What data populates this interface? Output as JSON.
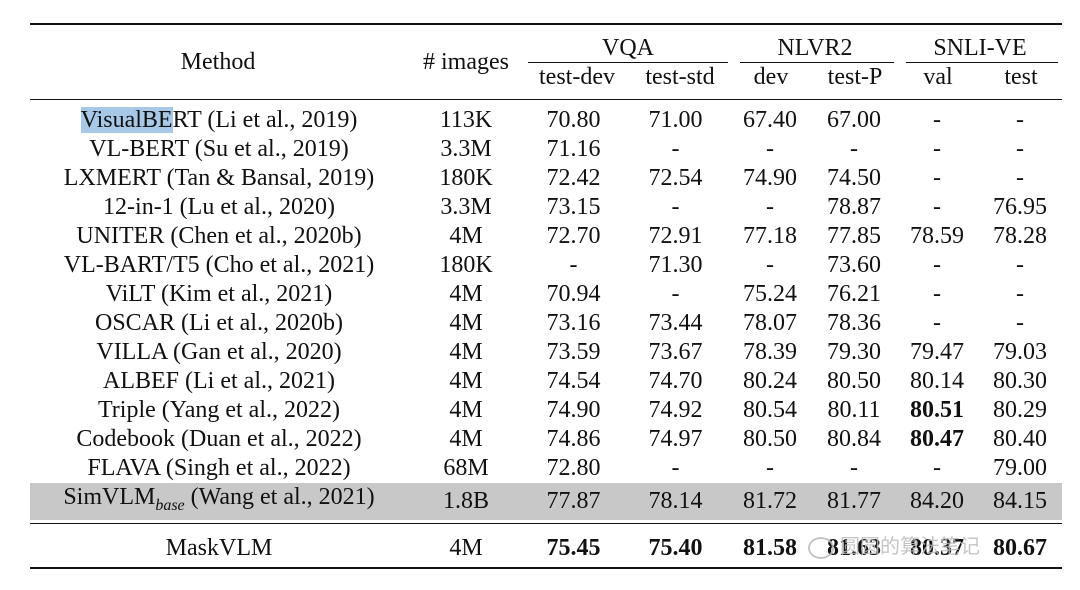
{
  "header": {
    "method": "Method",
    "images": "# images",
    "groups": [
      {
        "name": "VQA",
        "subs": [
          "test-dev",
          "test-std"
        ]
      },
      {
        "name": "NLVR2",
        "subs": [
          "dev",
          "test-P"
        ]
      },
      {
        "name": "SNLI-VE",
        "subs": [
          "val",
          "test"
        ]
      }
    ]
  },
  "rows": [
    {
      "method_sel": "VisualBE",
      "method_rest": "RT (Li et al., 2019)",
      "images": "113K",
      "vals": [
        "70.80",
        "71.00",
        "67.40",
        "67.00",
        "-",
        "-"
      ]
    },
    {
      "method": "VL-BERT (Su et al., 2019)",
      "images": "3.3M",
      "vals": [
        "71.16",
        "-",
        "-",
        "-",
        "-",
        "-"
      ]
    },
    {
      "method": "LXMERT (Tan & Bansal, 2019)",
      "images": "180K",
      "vals": [
        "72.42",
        "72.54",
        "74.90",
        "74.50",
        "-",
        "-"
      ]
    },
    {
      "method": "12-in-1 (Lu et al., 2020)",
      "images": "3.3M",
      "vals": [
        "73.15",
        "-",
        "-",
        "78.87",
        "-",
        "76.95"
      ]
    },
    {
      "method": "UNITER (Chen et al., 2020b)",
      "images": "4M",
      "vals": [
        "72.70",
        "72.91",
        "77.18",
        "77.85",
        "78.59",
        "78.28"
      ]
    },
    {
      "method": "VL-BART/T5 (Cho et al., 2021)",
      "images": "180K",
      "vals": [
        "-",
        "71.30",
        "-",
        "73.60",
        "-",
        "-"
      ]
    },
    {
      "method": "ViLT (Kim et al., 2021)",
      "images": "4M",
      "vals": [
        "70.94",
        "-",
        "75.24",
        "76.21",
        "-",
        "-"
      ]
    },
    {
      "method": "OSCAR (Li et al., 2020b)",
      "images": "4M",
      "vals": [
        "73.16",
        "73.44",
        "78.07",
        "78.36",
        "-",
        "-"
      ]
    },
    {
      "method": "VILLA (Gan et al., 2020)",
      "images": "4M",
      "vals": [
        "73.59",
        "73.67",
        "78.39",
        "79.30",
        "79.47",
        "79.03"
      ]
    },
    {
      "method": "ALBEF (Li et al., 2021)",
      "images": "4M",
      "vals": [
        "74.54",
        "74.70",
        "80.24",
        "80.50",
        "80.14",
        "80.30"
      ]
    },
    {
      "method": "Triple (Yang et al., 2022)",
      "images": "4M",
      "vals": [
        "74.90",
        "74.92",
        "80.54",
        "80.11",
        "80.51",
        "80.29"
      ]
    },
    {
      "method": "Codebook (Duan et al., 2022)",
      "images": "4M",
      "vals": [
        "74.86",
        "74.97",
        "80.50",
        "80.84",
        "80.47",
        "80.40"
      ]
    },
    {
      "method": "FLAVA (Singh et al., 2022)",
      "images": "68M",
      "vals": [
        "72.80",
        "-",
        "-",
        "-",
        "-",
        "79.00"
      ]
    },
    {
      "method_main": "SimVLM",
      "method_sub": "base",
      "method_rest": " (Wang et al., 2021)",
      "images": "1.8B",
      "vals": [
        "77.87",
        "78.14",
        "81.72",
        "81.77",
        "84.20",
        "84.15"
      ]
    },
    {
      "method": "MaskVLM",
      "images": "4M",
      "vals": [
        "75.45",
        "75.40",
        "81.58",
        "81.63",
        "80.37",
        "80.67"
      ]
    }
  ],
  "watermark": "圆圆的算法笔记"
}
